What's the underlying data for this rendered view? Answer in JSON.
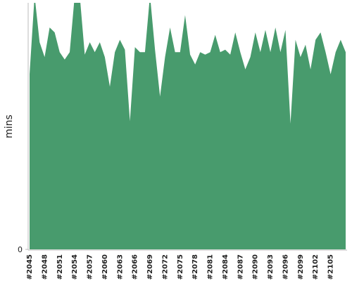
{
  "chart_data": {
    "type": "area",
    "y_label": "mins",
    "categories": [
      "#2045",
      null,
      null,
      "#2048",
      null,
      null,
      "#2051",
      null,
      null,
      "#2054",
      null,
      null,
      "#2057",
      null,
      null,
      "#2060",
      null,
      null,
      "#2063",
      null,
      null,
      "#2066",
      null,
      null,
      "#2069",
      null,
      null,
      "#2072",
      null,
      null,
      "#2075",
      null,
      null,
      "#2078",
      null,
      null,
      "#2081",
      null,
      null,
      "#2084",
      null,
      null,
      "#2087",
      null,
      null,
      "#2090",
      null,
      null,
      "#2093",
      null,
      null,
      "#2096",
      null,
      null,
      "#2099",
      null,
      null,
      "#2102",
      null,
      null,
      "#2105",
      null,
      null,
      null
    ],
    "values": [
      71,
      103,
      84,
      78,
      90,
      88,
      80,
      77,
      80,
      103,
      103,
      79,
      84,
      80,
      84,
      78,
      66,
      80,
      85,
      81,
      52,
      82,
      80,
      80,
      103,
      81,
      62,
      78,
      90,
      80,
      80,
      95,
      79,
      75,
      80,
      79,
      80,
      87,
      80,
      81,
      79,
      88,
      80,
      73,
      78,
      88,
      80,
      89,
      80,
      90,
      80,
      89,
      51,
      85,
      78,
      83,
      73,
      85,
      88,
      80,
      71,
      80,
      85,
      80
    ],
    "color": "#489b6d",
    "ylim": [
      0,
      100
    ],
    "yticks": [
      0
    ]
  }
}
